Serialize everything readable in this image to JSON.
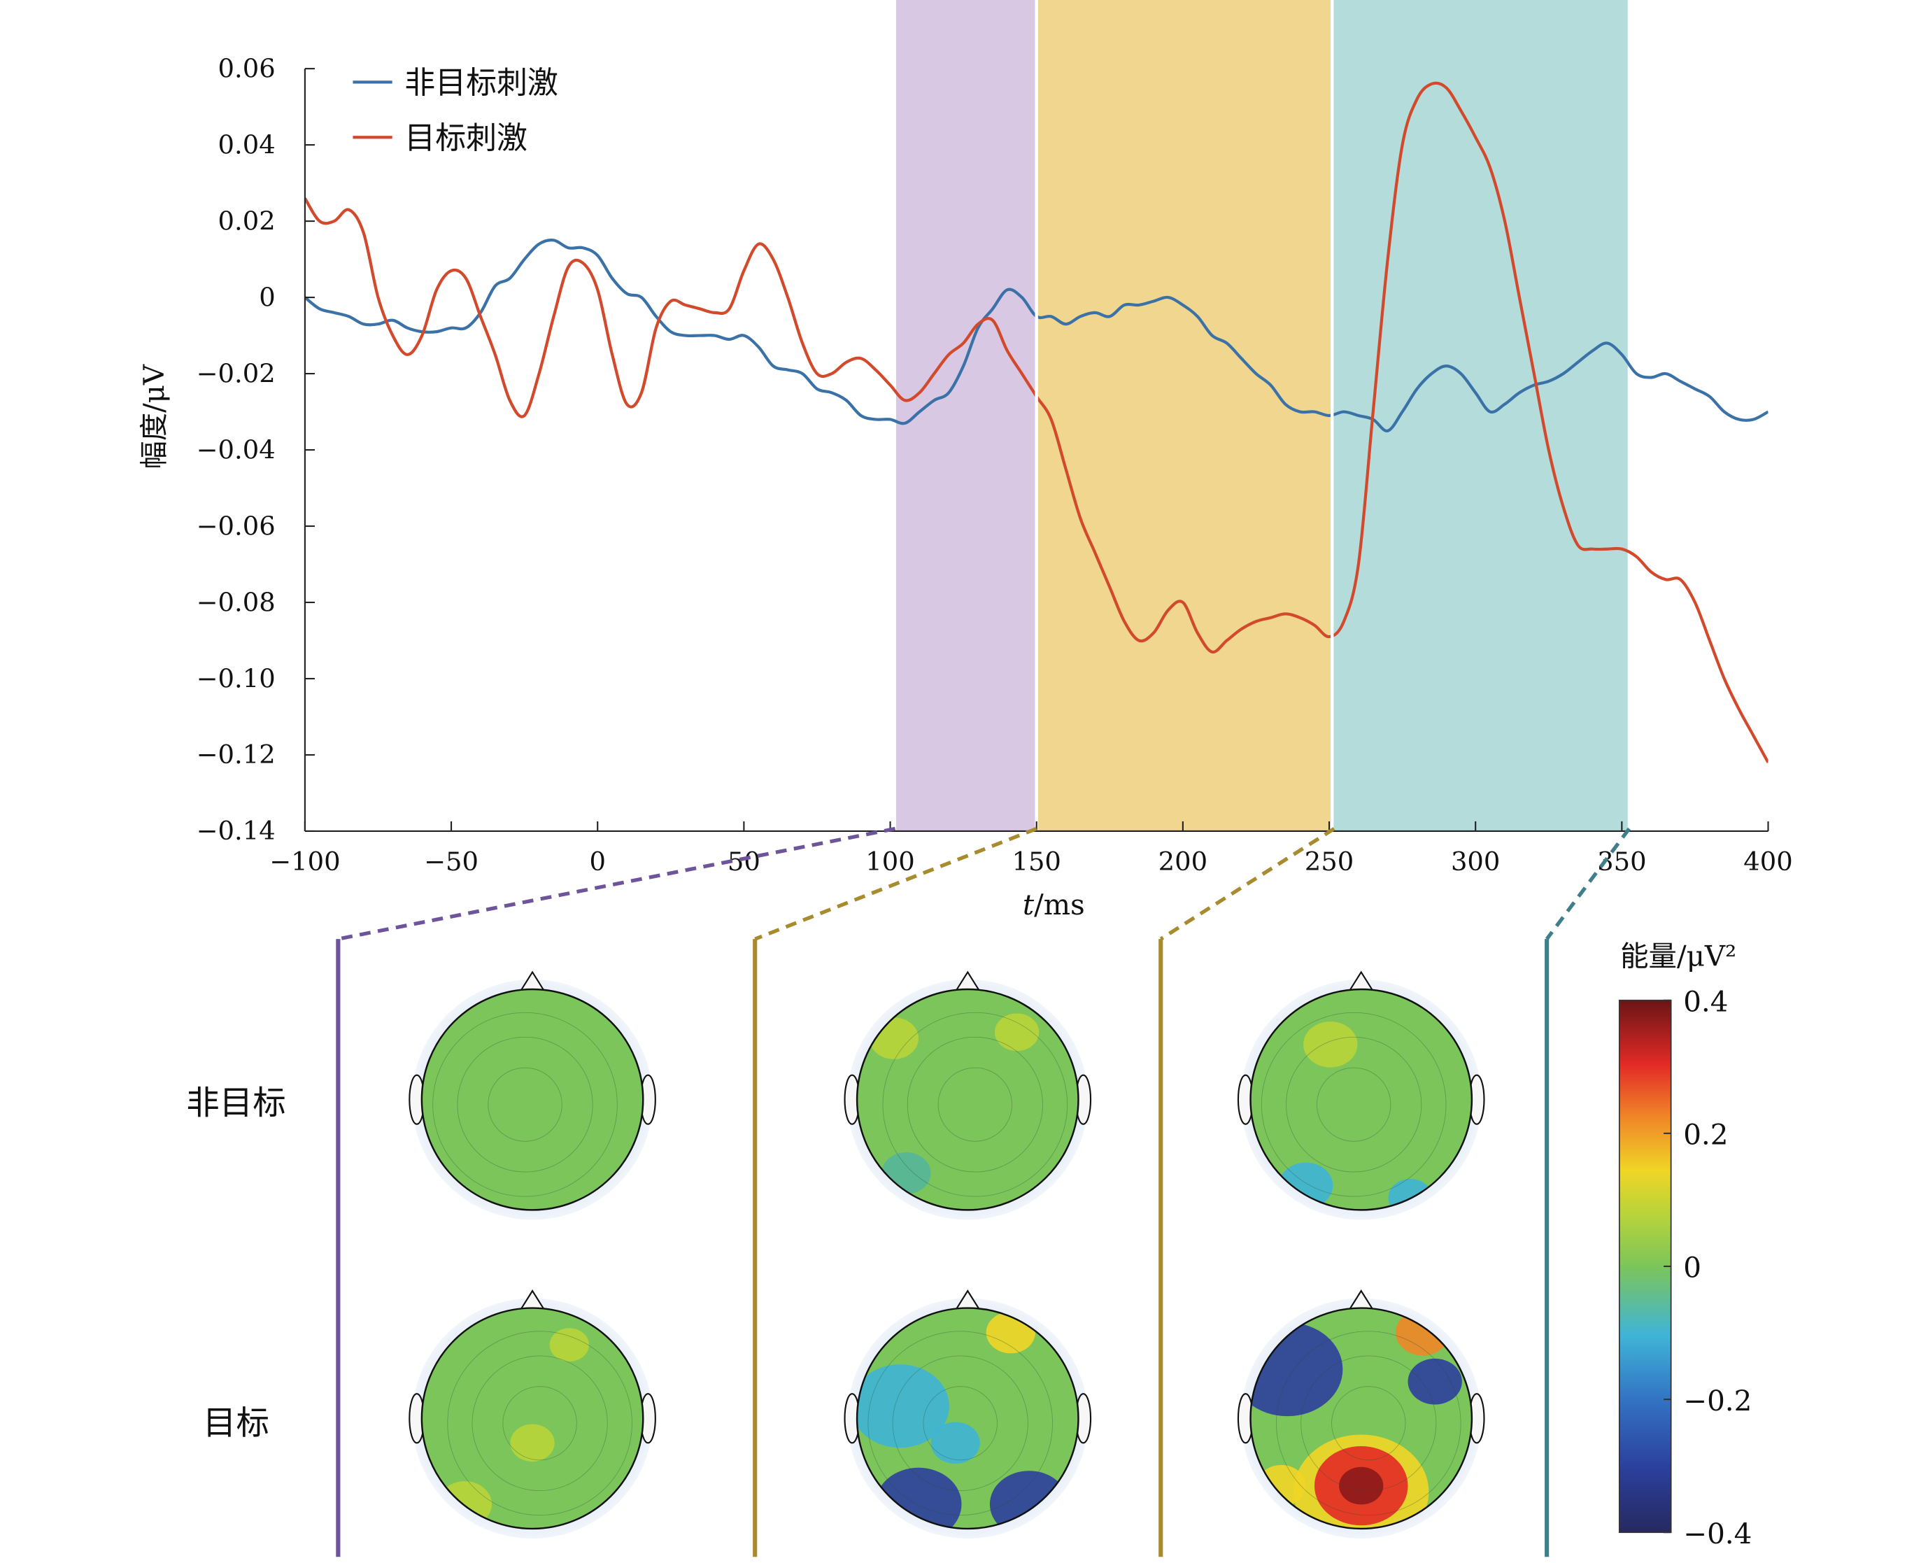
{
  "chart_data": {
    "type": "line",
    "xlabel_italic": "t",
    "xlabel_rest": "/ms",
    "ylabel": "幅度/μV",
    "xlim": [
      -100,
      400
    ],
    "ylim": [
      -0.14,
      0.06
    ],
    "xticks": [
      "−100",
      "−50",
      "0",
      "50",
      "100",
      "150",
      "200",
      "250",
      "300",
      "350",
      "400"
    ],
    "xtick_values": [
      -100,
      -50,
      0,
      50,
      100,
      150,
      200,
      250,
      300,
      350,
      400
    ],
    "yticks": [
      "0.06",
      "0.04",
      "0.02",
      "0",
      "−0.02",
      "−0.04",
      "−0.06",
      "−0.08",
      "−0.10",
      "−0.12",
      "−0.14"
    ],
    "ytick_values": [
      0.06,
      0.04,
      0.02,
      0,
      -0.02,
      -0.04,
      -0.06,
      -0.08,
      -0.1,
      -0.12,
      -0.14
    ],
    "legend_position": "top-left",
    "bands": [
      {
        "x0": 102,
        "x1": 150,
        "color": "#d8c8e4"
      },
      {
        "x0": 150,
        "x1": 251,
        "color": "#f0d68e"
      },
      {
        "x0": 251,
        "x1": 352,
        "color": "#b3dcdb"
      }
    ],
    "series": [
      {
        "name": "非目标刺激",
        "color": "#3a72a8",
        "x": [
          -100,
          -95,
          -90,
          -85,
          -80,
          -75,
          -70,
          -65,
          -60,
          -55,
          -50,
          -45,
          -40,
          -35,
          -30,
          -25,
          -20,
          -15,
          -10,
          -5,
          0,
          5,
          10,
          15,
          20,
          25,
          30,
          35,
          40,
          45,
          50,
          55,
          60,
          65,
          70,
          75,
          80,
          85,
          90,
          95,
          100,
          105,
          110,
          115,
          120,
          125,
          130,
          135,
          140,
          145,
          150,
          155,
          160,
          165,
          170,
          175,
          180,
          185,
          190,
          195,
          200,
          205,
          210,
          215,
          220,
          225,
          230,
          235,
          240,
          245,
          250,
          255,
          260,
          265,
          270,
          275,
          280,
          285,
          290,
          295,
          300,
          305,
          310,
          315,
          320,
          325,
          330,
          335,
          340,
          345,
          350,
          355,
          360,
          365,
          370,
          375,
          380,
          385,
          390,
          395,
          400
        ],
        "y": [
          0,
          -0.003,
          -0.004,
          -0.005,
          -0.007,
          -0.007,
          -0.006,
          -0.008,
          -0.009,
          -0.009,
          -0.008,
          -0.008,
          -0.004,
          0.003,
          0.005,
          0.01,
          0.014,
          0.015,
          0.013,
          0.013,
          0.011,
          0.005,
          0.001,
          0.0,
          -0.005,
          -0.009,
          -0.01,
          -0.01,
          -0.01,
          -0.011,
          -0.01,
          -0.013,
          -0.018,
          -0.019,
          -0.02,
          -0.024,
          -0.025,
          -0.027,
          -0.031,
          -0.032,
          -0.032,
          -0.033,
          -0.03,
          -0.027,
          -0.025,
          -0.018,
          -0.008,
          -0.003,
          0.002,
          0.0,
          -0.005,
          -0.005,
          -0.007,
          -0.005,
          -0.004,
          -0.005,
          -0.002,
          -0.002,
          -0.001,
          0.0,
          -0.002,
          -0.005,
          -0.01,
          -0.012,
          -0.016,
          -0.02,
          -0.023,
          -0.028,
          -0.03,
          -0.03,
          -0.031,
          -0.03,
          -0.031,
          -0.032,
          -0.035,
          -0.03,
          -0.024,
          -0.02,
          -0.018,
          -0.02,
          -0.025,
          -0.03,
          -0.028,
          -0.025,
          -0.023,
          -0.022,
          -0.02,
          -0.017,
          -0.014,
          -0.012,
          -0.015,
          -0.02,
          -0.021,
          -0.02,
          -0.022,
          -0.024,
          -0.026,
          -0.03,
          -0.032,
          -0.032,
          -0.03
        ]
      },
      {
        "name": "目标刺激",
        "color": "#d2492b",
        "x": [
          -100,
          -95,
          -90,
          -85,
          -80,
          -75,
          -70,
          -65,
          -60,
          -55,
          -50,
          -45,
          -40,
          -35,
          -30,
          -25,
          -20,
          -15,
          -10,
          -5,
          0,
          5,
          10,
          15,
          20,
          25,
          30,
          35,
          40,
          45,
          50,
          55,
          60,
          65,
          70,
          75,
          80,
          85,
          90,
          95,
          100,
          105,
          110,
          115,
          120,
          125,
          130,
          135,
          140,
          145,
          150,
          155,
          160,
          165,
          170,
          175,
          180,
          185,
          190,
          195,
          200,
          205,
          210,
          215,
          220,
          225,
          230,
          235,
          240,
          245,
          250,
          255,
          260,
          265,
          270,
          275,
          280,
          285,
          290,
          295,
          300,
          305,
          310,
          315,
          320,
          325,
          330,
          335,
          340,
          345,
          350,
          355,
          360,
          365,
          370,
          375,
          380,
          385,
          390,
          395,
          400
        ],
        "y": [
          0.026,
          0.02,
          0.02,
          0.023,
          0.017,
          0.0,
          -0.01,
          -0.015,
          -0.01,
          0.002,
          0.007,
          0.005,
          -0.005,
          -0.015,
          -0.027,
          -0.031,
          -0.02,
          -0.005,
          0.008,
          0.009,
          0.002,
          -0.015,
          -0.028,
          -0.025,
          -0.008,
          -0.001,
          -0.002,
          -0.003,
          -0.004,
          -0.003,
          0.007,
          0.014,
          0.01,
          0.0,
          -0.012,
          -0.02,
          -0.02,
          -0.017,
          -0.016,
          -0.019,
          -0.023,
          -0.027,
          -0.025,
          -0.02,
          -0.015,
          -0.012,
          -0.007,
          -0.006,
          -0.014,
          -0.02,
          -0.026,
          -0.032,
          -0.045,
          -0.058,
          -0.067,
          -0.076,
          -0.085,
          -0.09,
          -0.088,
          -0.082,
          -0.08,
          -0.088,
          -0.093,
          -0.09,
          -0.087,
          -0.085,
          -0.084,
          -0.083,
          -0.084,
          -0.086,
          -0.089,
          -0.085,
          -0.07,
          -0.03,
          0.01,
          0.04,
          0.052,
          0.056,
          0.055,
          0.049,
          0.042,
          0.034,
          0.02,
          0.0,
          -0.02,
          -0.04,
          -0.055,
          -0.065,
          -0.066,
          -0.066,
          -0.066,
          -0.068,
          -0.072,
          -0.074,
          -0.074,
          -0.08,
          -0.09,
          -0.1,
          -0.108,
          -0.115,
          -0.122
        ]
      }
    ]
  },
  "topomaps": {
    "row_labels": [
      "非目标",
      "目标"
    ],
    "colorbar": {
      "title": "能量/μV²",
      "ticks": [
        "0.4",
        "0.2",
        "0",
        "−0.2",
        "−0.4"
      ],
      "tick_values": [
        0.4,
        0.2,
        0,
        -0.2,
        -0.4
      ],
      "range": [
        -0.4,
        0.4
      ]
    },
    "group_colors": [
      "#6e549a",
      "#a88a2f",
      "#a88a2f",
      "#3f7f8a"
    ]
  }
}
